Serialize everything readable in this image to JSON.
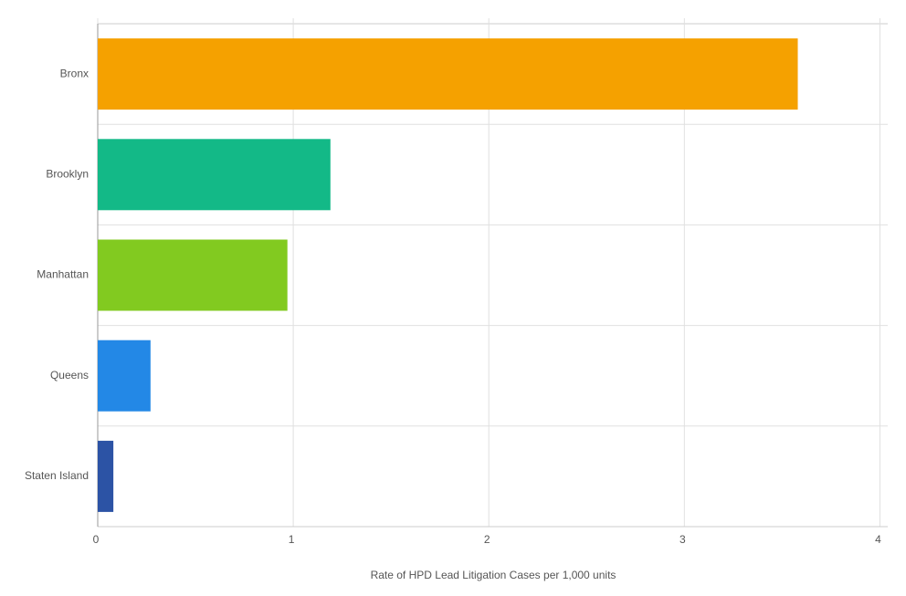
{
  "chart_data": {
    "type": "hbar",
    "x_label": "Rate of HPD Lead Litigation Cases per 1,000 units",
    "categories": [
      "Bronx",
      "Brooklyn",
      "Manhattan",
      "Queens",
      "Staten Island"
    ],
    "values": [
      3.58,
      1.19,
      0.97,
      0.27,
      0.08
    ],
    "colors": [
      "#f5a100",
      "#13b987",
      "#82ca20",
      "#2388e6",
      "#2c53a5"
    ],
    "xlim": [
      0,
      4.04
    ],
    "xticks": [
      0,
      1,
      2,
      3,
      4
    ],
    "grid": true
  }
}
